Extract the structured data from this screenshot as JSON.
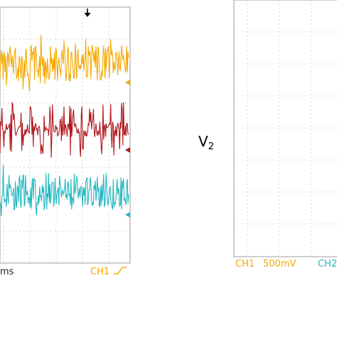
{
  "chart_data": [
    {
      "type": "line",
      "title": "",
      "xlabel": "",
      "ylabel": "",
      "grid": true,
      "series": [
        {
          "color": "#f5a800",
          "level": 0.78,
          "amplitude": 0.12,
          "pattern": "noise"
        },
        {
          "color": "#b0161c",
          "level": 0.52,
          "amplitude": 0.11,
          "pattern": "bursts"
        },
        {
          "color": "#22b8c0",
          "level": 0.28,
          "amplitude": 0.12,
          "pattern": "noise"
        }
      ],
      "status": {
        "timebase_fragment": "ms",
        "trigger_label": "CH1",
        "trigger_slope_icon": "rising-edge-icon",
        "trigger_marker_icon": "down-arrow-icon"
      }
    },
    {
      "type": "line",
      "title": "",
      "xlabel": "",
      "ylabel": "",
      "grid": true,
      "series": [],
      "status": {
        "ch1_label": "CH1",
        "ch1_scale": "500mV",
        "ch2_label": "CH2"
      }
    }
  ],
  "side_label": {
    "main": "V",
    "subscript": "2"
  },
  "colors": {
    "grid": "#c8c8c8",
    "frame": "#bdbdbd",
    "ch1_text": "#f5a800",
    "ch2_text": "#22b8c0"
  }
}
